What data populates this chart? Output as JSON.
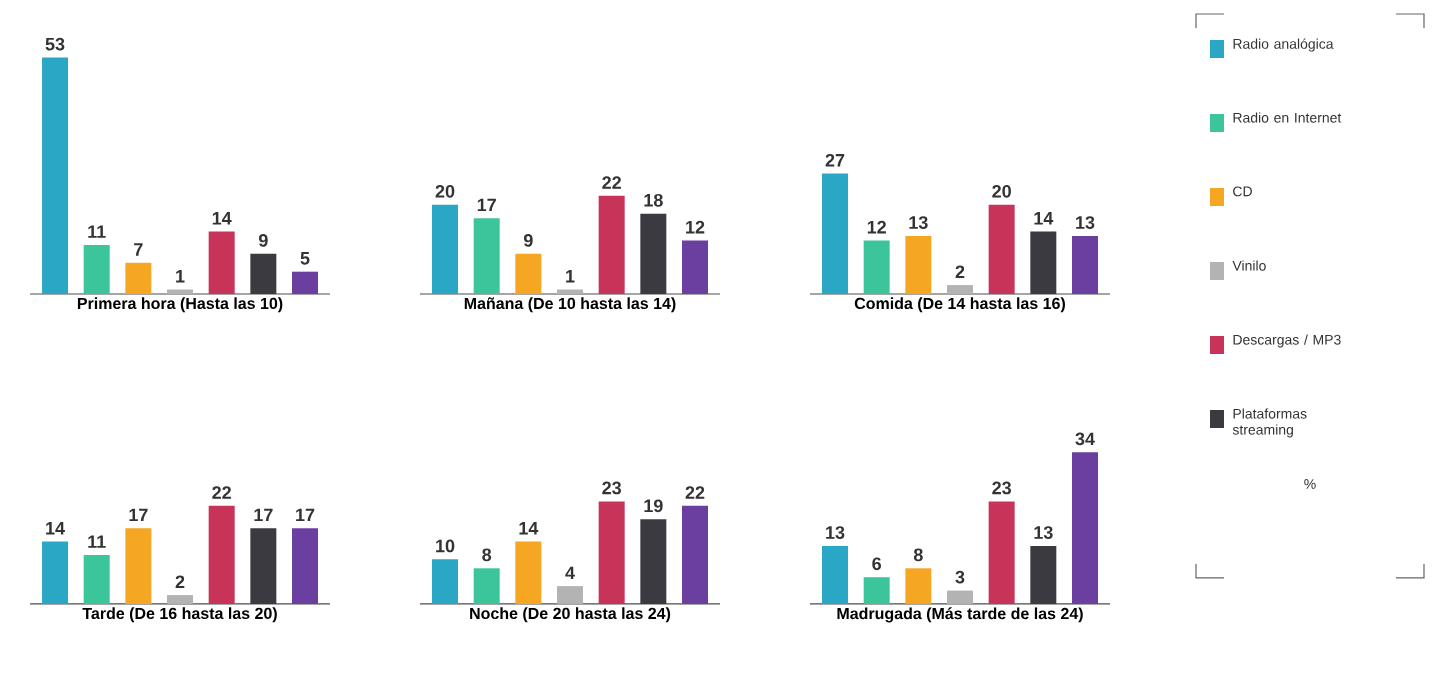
{
  "chart_data": [
    {
      "type": "bar",
      "xlabel": "Primera hora (Hasta las 10)",
      "categories": [
        null,
        null,
        null,
        null,
        null,
        null,
        null
      ],
      "data_labels": true,
      "values": [
        53,
        11,
        7,
        1,
        14,
        9,
        5
      ],
      "colors": [
        "#2aa7c4",
        "#3cc49a",
        "#f5a623",
        "#b3b3b3",
        "#c8335a",
        "#3a3a40",
        "#6a3fa0"
      ]
    },
    {
      "type": "bar",
      "xlabel": "Mañana (De 10 hasta las 14)",
      "categories": [
        null,
        null,
        null,
        null,
        null,
        null,
        null
      ],
      "data_labels": true,
      "values": [
        20,
        17,
        9,
        1,
        22,
        18,
        12
      ],
      "colors": [
        "#2aa7c4",
        "#3cc49a",
        "#f5a623",
        "#b3b3b3",
        "#c8335a",
        "#3a3a40",
        "#6a3fa0"
      ]
    },
    {
      "type": "bar",
      "xlabel": "Comida (De 14 hasta las 16)",
      "categories": [
        null,
        null,
        null,
        null,
        null,
        null,
        null
      ],
      "data_labels": true,
      "values": [
        27,
        12,
        13,
        2,
        20,
        14,
        13
      ],
      "colors": [
        "#2aa7c4",
        "#3cc49a",
        "#f5a623",
        "#b3b3b3",
        "#c8335a",
        "#3a3a40",
        "#6a3fa0"
      ]
    },
    {
      "type": "bar",
      "xlabel": "Tarde (De 16 hasta las 20)",
      "categories": [
        null,
        null,
        null,
        null,
        null,
        null,
        null
      ],
      "data_labels": true,
      "values": [
        14,
        11,
        17,
        2,
        22,
        17,
        17
      ],
      "colors": [
        "#2aa7c4",
        "#3cc49a",
        "#f5a623",
        "#b3b3b3",
        "#c8335a",
        "#3a3a40",
        "#6a3fa0"
      ]
    },
    {
      "type": "bar",
      "xlabel": "Noche (De 20 hasta las 24)",
      "categories": [
        null,
        null,
        null,
        null,
        null,
        null,
        null
      ],
      "data_labels": true,
      "values": [
        10,
        8,
        14,
        4,
        23,
        19,
        22
      ],
      "colors": [
        "#2aa7c4",
        "#3cc49a",
        "#f5a623",
        "#b3b3b3",
        "#c8335a",
        "#3a3a40",
        "#6a3fa0"
      ]
    },
    {
      "type": "bar",
      "xlabel": "Madrugada (Más tarde de las 24)",
      "categories": [
        null,
        null,
        null,
        null,
        null,
        null,
        null
      ],
      "data_labels": true,
      "values": [
        13,
        6,
        8,
        3,
        23,
        13,
        34
      ],
      "colors": [
        "#2aa7c4",
        "#3cc49a",
        "#f5a623",
        "#b3b3b3",
        "#c8335a",
        "#3a3a40",
        "#6a3fa0"
      ]
    },
    {
      "type": "other",
      "annotations": [
        "Radio analógica",
        "Radio en Internet",
        "CD",
        "Vinilo",
        "Descargas / MP3",
        "Plataformas streaming",
        "%"
      ]
    }
  ]
}
